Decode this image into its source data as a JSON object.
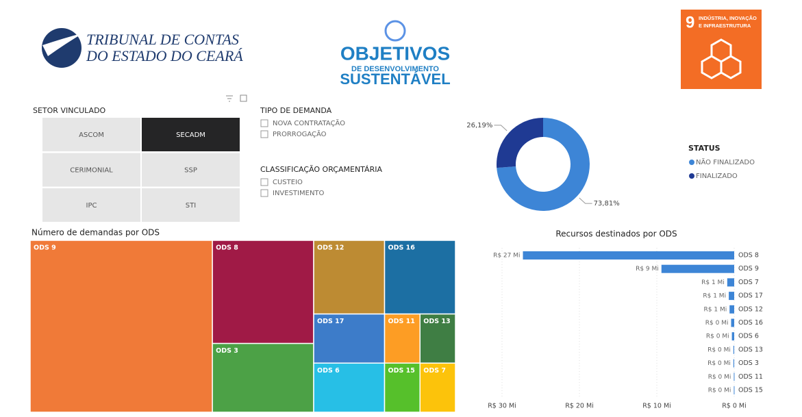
{
  "header": {
    "org": [
      "TRIBUNAL DE CONTAS",
      "DO ESTADO DO CEARÁ"
    ],
    "ods_logo": [
      "OBJETIVOS",
      "DE DESENVOLVIMENTO",
      "SUSTENTÁVEL"
    ],
    "sdg": {
      "number": "9",
      "label": [
        "INDÚSTRIA, INOVAÇÃO",
        "E INFRAESTRUTURA"
      ]
    }
  },
  "filters": {
    "setor": {
      "title": "SETOR VINCULADO",
      "options": [
        "ASCOM",
        "SECADM",
        "CERIMONIAL",
        "SSP",
        "IPC",
        "STI"
      ],
      "selected": 1
    },
    "tipo": {
      "title": "TIPO DE DEMANDA",
      "options": [
        "NOVA CONTRATAÇÃO",
        "PRORROGAÇÃO"
      ]
    },
    "classificacao": {
      "title": "CLASSIFICAÇÃO ORÇAMENTÁRIA",
      "options": [
        "CUSTEIO",
        "INVESTIMENTO"
      ]
    }
  },
  "chart_data": [
    {
      "type": "pie",
      "donut": true,
      "legend_title": "STATUS",
      "categories": [
        "NÃO FINALIZADO",
        "FINALIZADO"
      ],
      "values": [
        73.81,
        26.19
      ],
      "value_labels": [
        "73,81%",
        "26,19%"
      ],
      "colors": [
        "#3d85d6",
        "#1f3a93"
      ]
    },
    {
      "type": "treemap",
      "title": "Número de demandas por ODS",
      "categories": [
        "ODS 9",
        "ODS 8",
        "ODS 3",
        "ODS 12",
        "ODS 16",
        "ODS 17",
        "ODS 6",
        "ODS 11",
        "ODS 13",
        "ODS 15",
        "ODS 7"
      ],
      "values": [
        18,
        6,
        4,
        3,
        3,
        2,
        2,
        1,
        1,
        1,
        1
      ],
      "colors": [
        "#f07a38",
        "#a01a46",
        "#4ca146",
        "#bd8b33",
        "#1c6fa3",
        "#3d7cc9",
        "#27bfe6",
        "#fd9d24",
        "#3f7e44",
        "#56c02b",
        "#fcc30b"
      ]
    },
    {
      "type": "hbar",
      "title": "Recursos destinados por ODS",
      "categories": [
        "ODS 8",
        "ODS 9",
        "ODS 7",
        "ODS 17",
        "ODS 12",
        "ODS 16",
        "ODS 6",
        "ODS 13",
        "ODS 3",
        "ODS 11",
        "ODS 15"
      ],
      "values": [
        27.3,
        9.4,
        0.9,
        0.7,
        0.6,
        0.4,
        0.3,
        0.1,
        0.1,
        0.05,
        0.05
      ],
      "value_labels": [
        "R$ 27 Mi",
        "R$ 9 Mi",
        "R$ 1 Mi",
        "R$ 1 Mi",
        "R$ 1 Mi",
        "R$ 0 Mi",
        "R$ 0 Mi",
        "R$ 0 Mi",
        "R$ 0 Mi",
        "R$ 0 Mi",
        "R$ 0 Mi"
      ],
      "color": "#3d85d6",
      "xlim": [
        0,
        30
      ],
      "reversed": true,
      "grid": true,
      "xticks": [
        {
          "value": 30,
          "label": "R$ 30 Mi"
        },
        {
          "value": 20,
          "label": "R$ 20 Mi"
        },
        {
          "value": 10,
          "label": "R$ 10 Mi"
        },
        {
          "value": 0,
          "label": "R$ 0 Mi"
        }
      ]
    }
  ]
}
